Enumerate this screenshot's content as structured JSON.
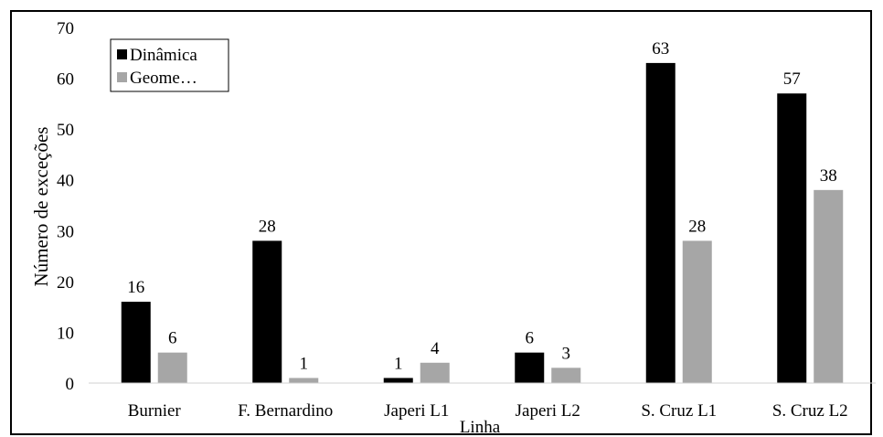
{
  "chart_data": {
    "type": "bar",
    "xlabel": "Linha",
    "ylabel": "Número de exceções",
    "ylim": [
      0,
      70
    ],
    "yticks": [
      0,
      10,
      20,
      30,
      40,
      50,
      60,
      70
    ],
    "grid": false,
    "legend_position": "top-left",
    "categories": [
      "Burnier",
      "F. Bernardino",
      "Japeri L1",
      "Japeri L2",
      "S. Cruz L1",
      "S. Cruz L2"
    ],
    "series": [
      {
        "name": "Dinâmica",
        "values": [
          16,
          28,
          1,
          6,
          63,
          57
        ],
        "color": "#000000"
      },
      {
        "name": "Geome…",
        "values": [
          6,
          1,
          4,
          3,
          28,
          38
        ],
        "color": "#a6a6a6"
      }
    ]
  }
}
